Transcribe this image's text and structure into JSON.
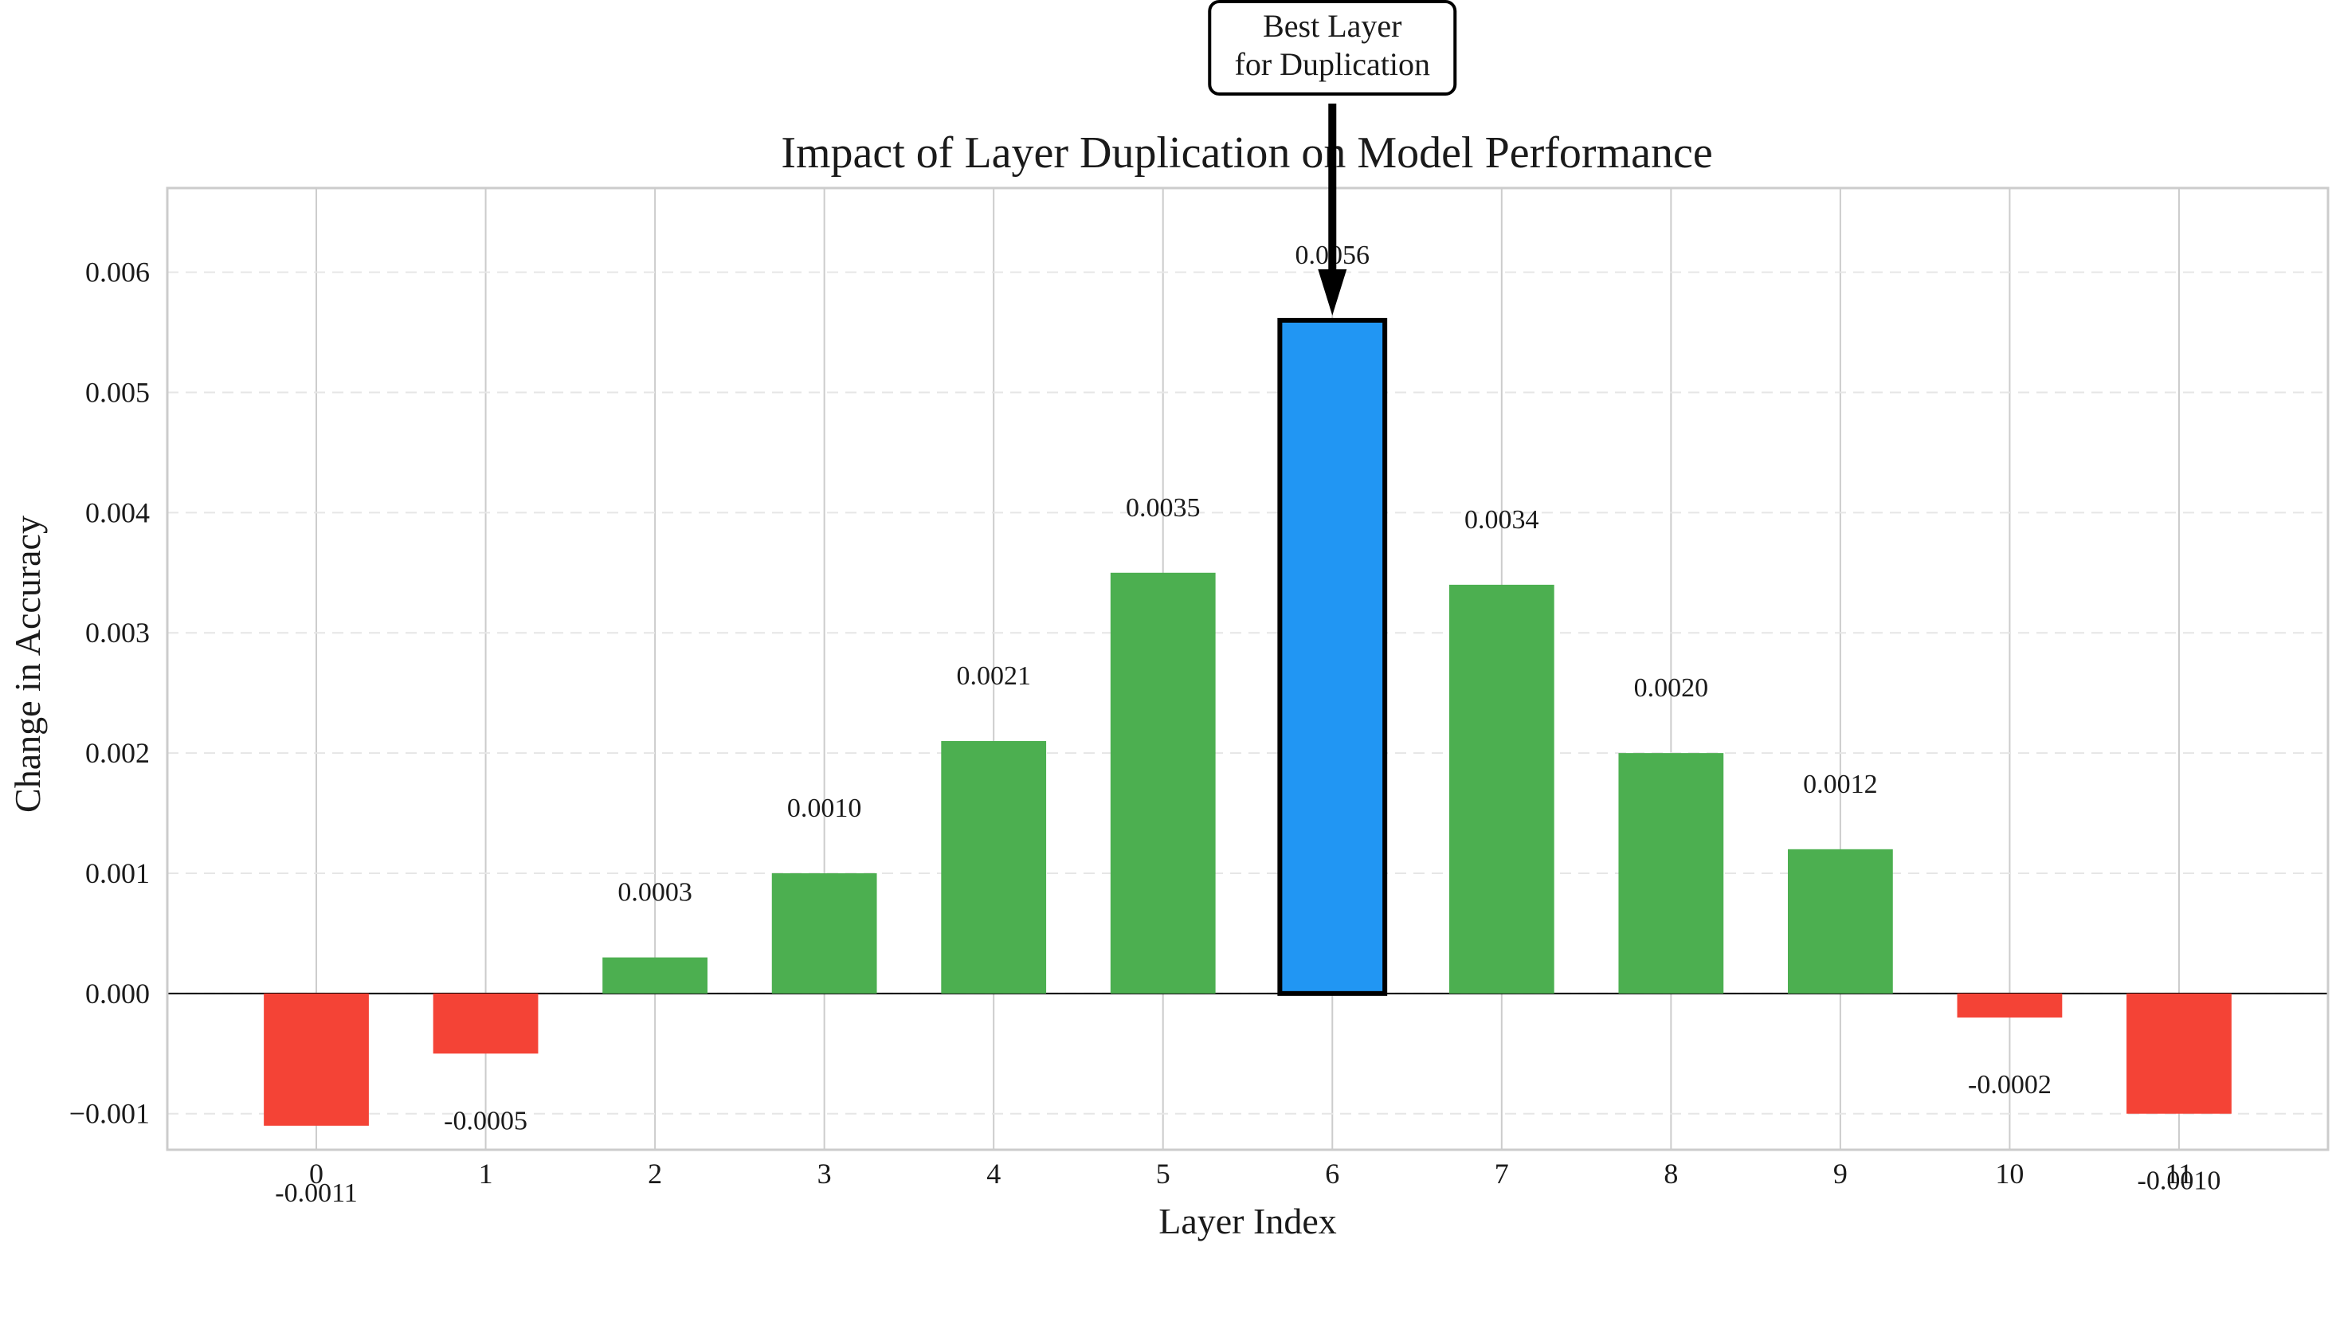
{
  "chart_data": {
    "type": "bar",
    "title": "Impact of Layer Duplication on Model Performance",
    "xlabel": "Layer Index",
    "ylabel": "Change in Accuracy",
    "categories": [
      "0",
      "1",
      "2",
      "3",
      "4",
      "5",
      "6",
      "7",
      "8",
      "9",
      "10",
      "11"
    ],
    "values": [
      -0.0011,
      -0.0005,
      0.0003,
      0.001,
      0.0021,
      0.0035,
      0.0056,
      0.0034,
      0.002,
      0.0012,
      -0.0002,
      -0.001
    ],
    "value_labels": [
      "-0.0011",
      "-0.0005",
      "0.0003",
      "0.0010",
      "0.0021",
      "0.0035",
      "0.0056",
      "0.0034",
      "0.0020",
      "0.0012",
      "-0.0002",
      "-0.0010"
    ],
    "yticks": [
      -0.001,
      0.0,
      0.001,
      0.002,
      0.003,
      0.004,
      0.005,
      0.006
    ],
    "ytick_labels": [
      "−0.001",
      "0.000",
      "0.001",
      "0.002",
      "0.003",
      "0.004",
      "0.005",
      "0.006"
    ],
    "ylim": [
      -0.0013,
      0.0067
    ],
    "xlim": [
      -0.88,
      11.88
    ],
    "grid": true,
    "highlight_index": 6,
    "annotation": {
      "line1": "Best Layer",
      "line2": "for Duplication",
      "target_category": "6"
    },
    "colors": {
      "positive": "#4caf50",
      "negative": "#f44336",
      "highlight": "#2196f3",
      "highlight_edge": "#000000",
      "grid": "#cccccc",
      "axis": "#cccccc",
      "text": "#1a1a1a"
    }
  }
}
